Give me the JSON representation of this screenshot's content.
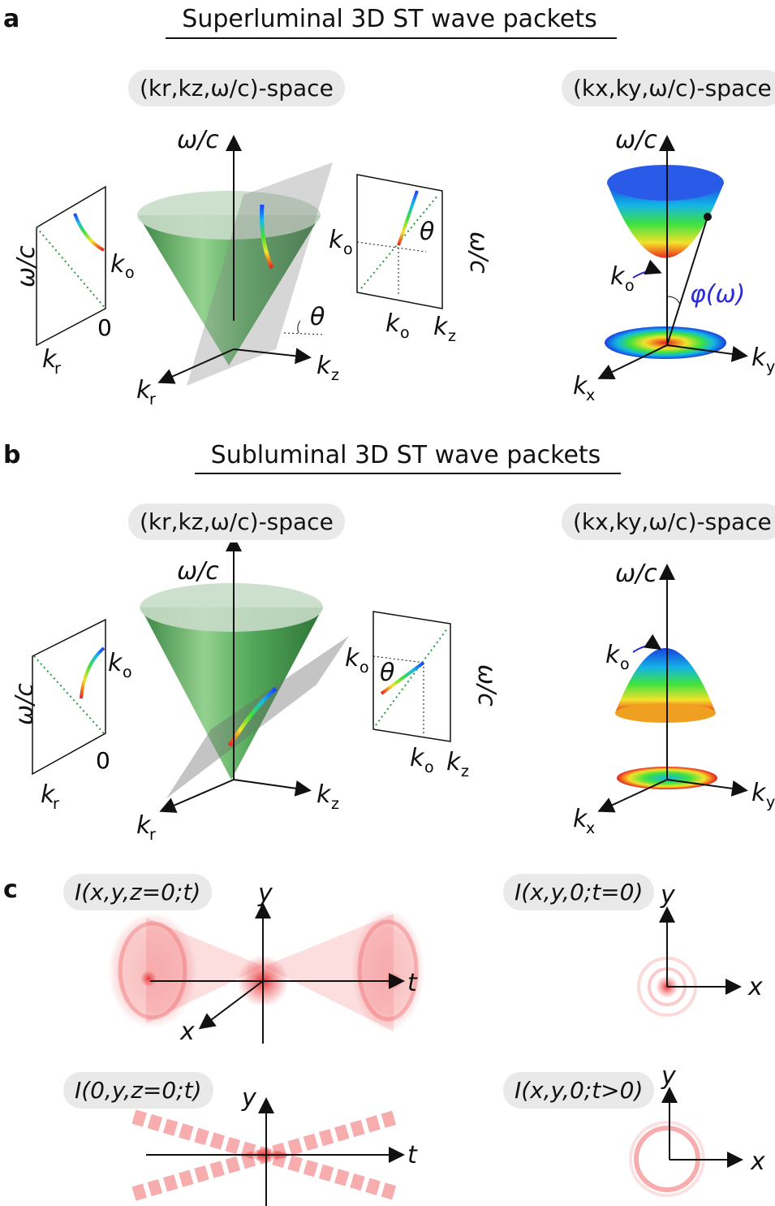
{
  "panels": {
    "a": {
      "letter": "a",
      "title": "Superluminal 3D ST wave packets",
      "left_space": "(kr,kz,ω/c)-space",
      "right_space": "(kx,ky,ω/c)-space",
      "labels": {
        "omega_c": "ω/c",
        "k_r": "k",
        "k_r_sub": "r",
        "k_z": "k",
        "k_z_sub": "z",
        "k_x": "k",
        "k_x_sub": "x",
        "k_y": "k",
        "k_y_sub": "y",
        "k_o": "k",
        "k_o_sub": "o",
        "zero": "0",
        "theta": "θ",
        "phi": "φ(ω)"
      }
    },
    "b": {
      "letter": "b",
      "title": "Subluminal 3D ST wave packets",
      "left_space": "(kr,kz,ω/c)-space",
      "right_space": "(kx,ky,ω/c)-space"
    },
    "c": {
      "letter": "c",
      "plots": [
        {
          "label": "I(x,y,z=0;t)",
          "axes": [
            "y",
            "t",
            "x"
          ]
        },
        {
          "label": "I(x,y,0;t=0)",
          "axes": [
            "y",
            "x"
          ]
        },
        {
          "label": "I(0,y,z=0;t)",
          "axes": [
            "y",
            "t"
          ]
        },
        {
          "label": "I(x,y,0;t>0)",
          "axes": [
            "y",
            "x"
          ]
        }
      ]
    }
  },
  "colors": {
    "cone": "#3d9a48",
    "cone_top": "#c8dcc8",
    "plane": "#9a9a9a",
    "intensity": "#e8383c",
    "light_cone_line": "#1f9a3c",
    "phi_label": "#2b2bd6",
    "pill": "#e9e9e9"
  },
  "icons": [
    "rainbow-curve",
    "paraboloid-surface",
    "intensity-ring"
  ]
}
